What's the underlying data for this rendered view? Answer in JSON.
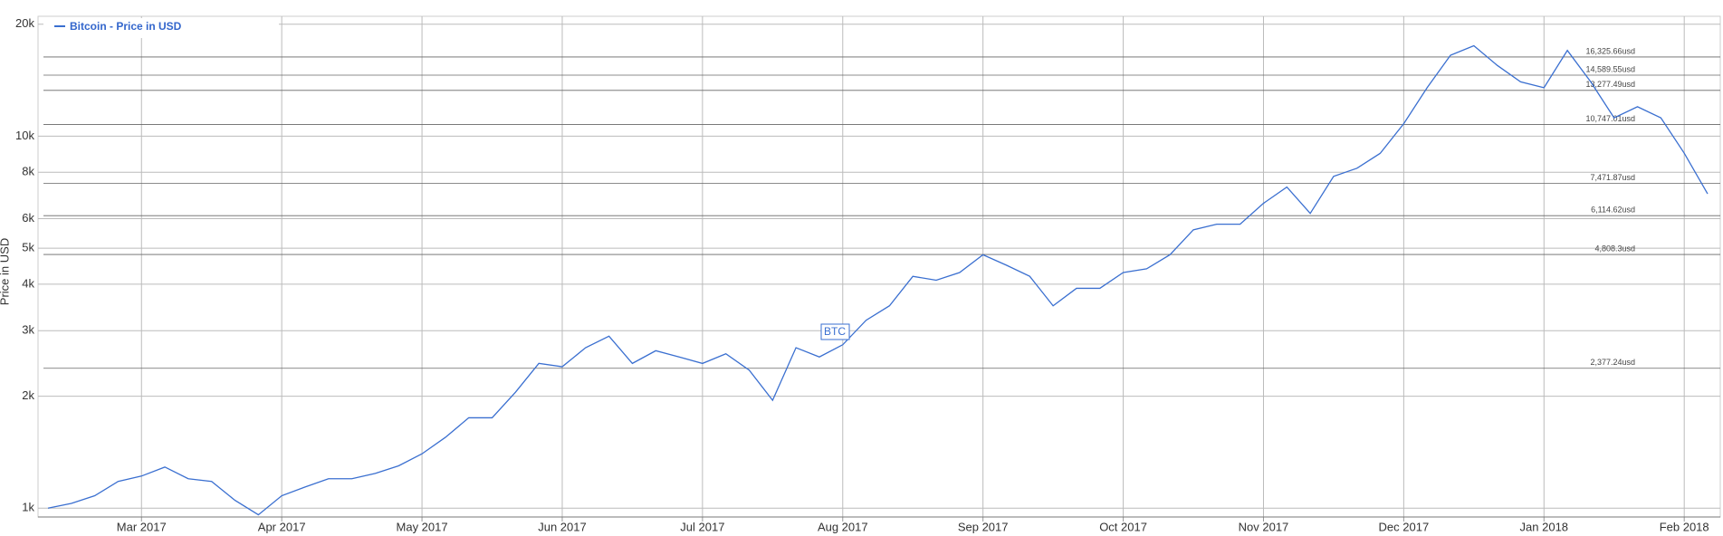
{
  "chart_data": {
    "type": "line",
    "y_label": "Price in USD",
    "log_scale": true,
    "grid": true,
    "categories": [
      null,
      null,
      null,
      null,
      "Mar 2017",
      null,
      null,
      null,
      null,
      null,
      "Apr 2017",
      null,
      null,
      null,
      null,
      null,
      "May 2017",
      null,
      null,
      null,
      null,
      null,
      "Jun 2017",
      null,
      null,
      null,
      null,
      null,
      "Jul 2017",
      null,
      null,
      null,
      null,
      null,
      "Aug 2017",
      null,
      null,
      null,
      null,
      null,
      "Sep 2017",
      null,
      null,
      null,
      null,
      null,
      "Oct 2017",
      null,
      null,
      null,
      null,
      null,
      "Nov 2017",
      null,
      null,
      null,
      null,
      null,
      "Dec 2017",
      null,
      null,
      null,
      null,
      null,
      "Jan 2018",
      null,
      null,
      null,
      null,
      null,
      "Feb 2018",
      null
    ],
    "series": [
      {
        "name": "Bitcoin - Price in USD",
        "color": "#3a6fd0",
        "values": [
          1000,
          1030,
          1080,
          1180,
          1220,
          1290,
          1200,
          1180,
          1050,
          960,
          1080,
          1140,
          1200,
          1200,
          1240,
          1300,
          1400,
          1550,
          1750,
          1750,
          2050,
          2450,
          2400,
          2700,
          2900,
          2450,
          2650,
          2550,
          2450,
          2600,
          2350,
          1950,
          2700,
          2550,
          2750,
          3200,
          3500,
          4200,
          4100,
          4300,
          4800,
          4500,
          4200,
          3500,
          3900,
          3900,
          4300,
          4400,
          4800,
          5600,
          5800,
          5800,
          6600,
          7300,
          6200,
          7800,
          8200,
          9000,
          10800,
          13500,
          16500,
          17500,
          15500,
          14000,
          13500,
          17000,
          14000,
          11200,
          12000,
          11200,
          9000,
          7000
        ]
      }
    ],
    "ylim": [
      947,
      21000
    ],
    "yticks": [
      {
        "value": 1000,
        "label": "1k"
      },
      {
        "value": 2000,
        "label": "2k"
      },
      {
        "value": 3000,
        "label": "3k"
      },
      {
        "value": 4000,
        "label": "4k"
      },
      {
        "value": 5000,
        "label": "5k"
      },
      {
        "value": 6000,
        "label": "6k"
      },
      {
        "value": 8000,
        "label": "8k"
      },
      {
        "value": 10000,
        "label": "10k"
      },
      {
        "value": 20000,
        "label": "20k"
      }
    ],
    "annotations": [
      {
        "value": 16325.66,
        "label": "16,325.66usd"
      },
      {
        "value": 14589.55,
        "label": "14,589.55usd"
      },
      {
        "value": 13277.49,
        "label": "13,277.49usd"
      },
      {
        "value": 10747.01,
        "label": "10,747.01usd"
      },
      {
        "value": 7471.87,
        "label": "7,471.87usd"
      },
      {
        "value": 6114.62,
        "label": "6,114.62usd"
      },
      {
        "value": 4808.3,
        "label": "4,808.3usd"
      },
      {
        "value": 2377.24,
        "label": "2,377.24usd"
      }
    ],
    "flags": [
      {
        "label": "BTC"
      }
    ]
  }
}
